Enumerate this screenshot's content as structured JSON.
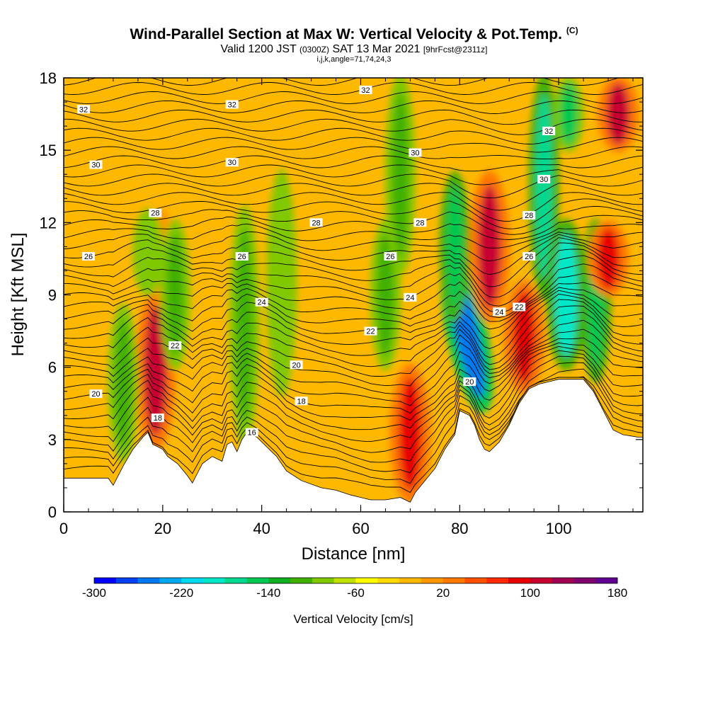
{
  "title": {
    "main": "Wind-Parallel Section at Max W: Vertical Velocity & Pot.Temp.",
    "mark": "(C)",
    "valid_prefix": "Valid 1200 JST",
    "valid_utc": "(0300Z)",
    "valid_date": "SAT 13 Mar 2021",
    "forecast": "[9hrFcst@2311z]",
    "params": "i,j,k,angle=71,74,24,3"
  },
  "chart_data": {
    "type": "heatmap",
    "xlabel": "Distance [nm]",
    "ylabel": "Height [Kft MSL]",
    "xlim": [
      0,
      117
    ],
    "ylim": [
      0,
      18
    ],
    "x_ticks": [
      0,
      20,
      40,
      60,
      80,
      100
    ],
    "y_ticks": [
      0,
      3,
      6,
      9,
      12,
      15,
      18
    ],
    "colorbar": {
      "title": "Vertical Velocity [cm/s]",
      "tick_labels": [
        "-300",
        "-220",
        "-140",
        "-60",
        "20",
        "100",
        "180"
      ],
      "colors": [
        "#0000ff",
        "#0040f0",
        "#0078f0",
        "#00a8f0",
        "#00d8f0",
        "#00e8c8",
        "#00d890",
        "#00c850",
        "#10b020",
        "#40b000",
        "#80c800",
        "#c0e000",
        "#ffff00",
        "#ffd800",
        "#ffb800",
        "#ff9800",
        "#ff7800",
        "#ff5000",
        "#ff2800",
        "#e80000",
        "#c80030",
        "#a00050",
        "#800070",
        "#600090"
      ]
    },
    "terrain_top_kft": [
      [
        0,
        1.4
      ],
      [
        9,
        1.4
      ],
      [
        10,
        1.1
      ],
      [
        11,
        1.5
      ],
      [
        12,
        1.9
      ],
      [
        14,
        2.6
      ],
      [
        16,
        3.1
      ],
      [
        17,
        3.3
      ],
      [
        18,
        2.8
      ],
      [
        19,
        2.7
      ],
      [
        20,
        2.6
      ],
      [
        21,
        2.3
      ],
      [
        23,
        2.0
      ],
      [
        25,
        1.5
      ],
      [
        26,
        1.2
      ],
      [
        27,
        1.6
      ],
      [
        28,
        2.0
      ],
      [
        30,
        2.3
      ],
      [
        32,
        2.1
      ],
      [
        33,
        2.8
      ],
      [
        34,
        2.9
      ],
      [
        35,
        2.5
      ],
      [
        36,
        3.0
      ],
      [
        37,
        3.3
      ],
      [
        39,
        3.1
      ],
      [
        41,
        2.7
      ],
      [
        43,
        2.3
      ],
      [
        45,
        1.7
      ],
      [
        48,
        1.3
      ],
      [
        52,
        1.0
      ],
      [
        55,
        0.9
      ],
      [
        58,
        0.7
      ],
      [
        62,
        0.5
      ],
      [
        65,
        0.5
      ],
      [
        68,
        0.6
      ],
      [
        70,
        0.4
      ],
      [
        71,
        0.8
      ],
      [
        73,
        1.3
      ],
      [
        75,
        1.8
      ],
      [
        77,
        2.6
      ],
      [
        79,
        3.2
      ],
      [
        80,
        4.2
      ],
      [
        82,
        4.0
      ],
      [
        83,
        3.6
      ],
      [
        84,
        3.0
      ],
      [
        85,
        2.6
      ],
      [
        86,
        2.5
      ],
      [
        88,
        2.9
      ],
      [
        90,
        3.6
      ],
      [
        92,
        4.5
      ],
      [
        94,
        5.1
      ],
      [
        96,
        5.3
      ],
      [
        98,
        5.4
      ],
      [
        100,
        5.5
      ],
      [
        105,
        5.5
      ],
      [
        107,
        5.0
      ],
      [
        109,
        4.2
      ],
      [
        111,
        3.4
      ],
      [
        113,
        3.2
      ],
      [
        116,
        3.1
      ],
      [
        117,
        3.1
      ]
    ],
    "velocity_features": [
      {
        "x": 18.5,
        "y_min": 2.7,
        "y_max": 9.0,
        "w": 180
      },
      {
        "x": 19.5,
        "y_min": 9.0,
        "y_max": 12.5,
        "w": 60
      },
      {
        "x": 12.0,
        "y_min": 2.2,
        "y_max": 8.5,
        "w": -90
      },
      {
        "x": 17.0,
        "y_min": 9.0,
        "y_max": 12.5,
        "w": -60
      },
      {
        "x": 22.5,
        "y_min": 6.0,
        "y_max": 12.0,
        "w": -80
      },
      {
        "x": 36.5,
        "y_min": 3.0,
        "y_max": 12.5,
        "w": -70
      },
      {
        "x": 44.0,
        "y_min": 5.0,
        "y_max": 14.0,
        "w": -60
      },
      {
        "x": 65.0,
        "y_min": 6.0,
        "y_max": 12.0,
        "w": -70
      },
      {
        "x": 70.0,
        "y_min": 0.5,
        "y_max": 6.0,
        "w": 170
      },
      {
        "x": 68.0,
        "y_min": 10.0,
        "y_max": 18.0,
        "w": -80
      },
      {
        "x": 81.5,
        "y_min": 4.2,
        "y_max": 10.5,
        "w": -250
      },
      {
        "x": 79.0,
        "y_min": 8.0,
        "y_max": 14.0,
        "w": -140
      },
      {
        "x": 86.0,
        "y_min": 8.0,
        "y_max": 14.0,
        "w": 180
      },
      {
        "x": 93.0,
        "y_min": 5.0,
        "y_max": 9.5,
        "w": 170
      },
      {
        "x": 97.0,
        "y_min": 9.0,
        "y_max": 18.0,
        "w": -150
      },
      {
        "x": 101.5,
        "y_min": 6.0,
        "y_max": 12.0,
        "w": -180
      },
      {
        "x": 107.5,
        "y_min": 5.5,
        "y_max": 12.0,
        "w": -140
      },
      {
        "x": 110.0,
        "y_min": 9.0,
        "y_max": 12.0,
        "w": 170
      },
      {
        "x": 112.0,
        "y_min": 15.0,
        "y_max": 18.0,
        "w": 180
      },
      {
        "x": 102.0,
        "y_min": 15.0,
        "y_max": 18.0,
        "w": -120
      }
    ],
    "theta_contour_labels": [
      {
        "text": "32",
        "x": 4,
        "y": 16.7
      },
      {
        "text": "32",
        "x": 34,
        "y": 16.9
      },
      {
        "text": "32",
        "x": 61,
        "y": 17.5
      },
      {
        "text": "32",
        "x": 98,
        "y": 15.8
      },
      {
        "text": "30",
        "x": 6.5,
        "y": 14.4
      },
      {
        "text": "30",
        "x": 34,
        "y": 14.5
      },
      {
        "text": "30",
        "x": 71,
        "y": 14.9
      },
      {
        "text": "30",
        "x": 97,
        "y": 13.8
      },
      {
        "text": "28",
        "x": 18.5,
        "y": 12.4
      },
      {
        "text": "28",
        "x": 51,
        "y": 12.0
      },
      {
        "text": "28",
        "x": 72,
        "y": 12.0
      },
      {
        "text": "28",
        "x": 94,
        "y": 12.3
      },
      {
        "text": "26",
        "x": 5,
        "y": 10.6
      },
      {
        "text": "26",
        "x": 36,
        "y": 10.6
      },
      {
        "text": "26",
        "x": 66,
        "y": 10.6
      },
      {
        "text": "26",
        "x": 94,
        "y": 10.6
      },
      {
        "text": "24",
        "x": 40,
        "y": 8.7
      },
      {
        "text": "24",
        "x": 70,
        "y": 8.9
      },
      {
        "text": "24",
        "x": 88,
        "y": 8.3
      },
      {
        "text": "22",
        "x": 22.5,
        "y": 6.9
      },
      {
        "text": "22",
        "x": 62,
        "y": 7.5
      },
      {
        "text": "22",
        "x": 92,
        "y": 8.5
      },
      {
        "text": "20",
        "x": 6.5,
        "y": 4.9
      },
      {
        "text": "20",
        "x": 47,
        "y": 6.1
      },
      {
        "text": "20",
        "x": 82,
        "y": 5.4
      },
      {
        "text": "18",
        "x": 19,
        "y": 3.9
      },
      {
        "text": "18",
        "x": 48,
        "y": 4.6
      },
      {
        "text": "16",
        "x": 38,
        "y": 3.3
      }
    ]
  }
}
